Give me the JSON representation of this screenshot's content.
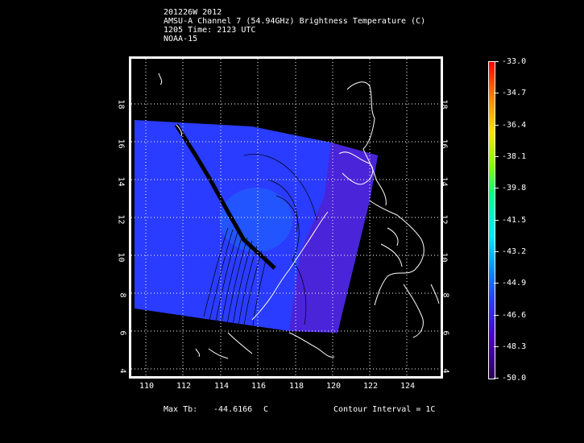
{
  "header": {
    "line1": "201226W 2012",
    "line2": "AMSU-A Channel 7 (54.94GHz) Brightness Temperature (C)",
    "line3": "1205 Time: 2123 UTC",
    "line4": "NOAA-15"
  },
  "map": {
    "lon_ticks": [
      "110",
      "112",
      "114",
      "116",
      "118",
      "120",
      "122",
      "124"
    ],
    "lat_ticks": [
      "4",
      "6",
      "8",
      "10",
      "12",
      "14",
      "16",
      "18"
    ],
    "lon_range": [
      109.5,
      125.5
    ],
    "lat_range": [
      3.8,
      20.0
    ]
  },
  "colorbar": {
    "labels": [
      "-33.0",
      "-34.7",
      "-36.4",
      "-38.1",
      "-39.8",
      "-41.5",
      "-43.2",
      "-44.9",
      "-46.6",
      "-48.3",
      "-50.0"
    ],
    "colors": {
      "top": "#ff0000",
      "mid": "#00e8ff",
      "low": "#2a3cff",
      "bottom": "#2a0050"
    }
  },
  "footer": {
    "max_tb_label": "Max Tb:",
    "max_tb_value": "-44.6166",
    "max_tb_unit": "C",
    "contour_label": "Contour Interval = 1C"
  }
}
